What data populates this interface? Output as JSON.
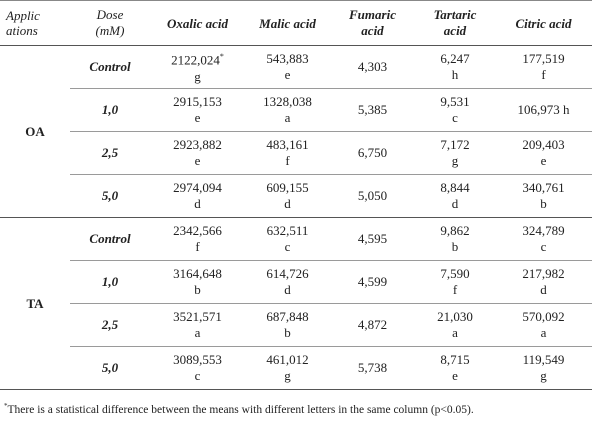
{
  "header": {
    "applications": "Applic ations",
    "dose_line1": "Dose",
    "dose_line2": "(mM)",
    "oxalic": "Oxalic acid",
    "malic": "Malic acid",
    "fumaric_line1": "Fumaric",
    "fumaric_line2": "acid",
    "tartaric_line1": "Tartaric",
    "tartaric_line2": "acid",
    "citric": "Citric acid"
  },
  "groups": [
    {
      "application": "OA",
      "rows": [
        {
          "dose": "Control",
          "oxalic": {
            "value": "2122,024",
            "sup": "*",
            "letter": "g"
          },
          "malic": {
            "value": "543,883",
            "letter": "e"
          },
          "fumaric": "4,303",
          "tartaric": {
            "value": "6,247",
            "letter": "h"
          },
          "citric": {
            "value": "177,519",
            "letter": "f"
          }
        },
        {
          "dose": "1,0",
          "oxalic": {
            "value": "2915,153",
            "letter": "e"
          },
          "malic": {
            "value": "1328,038",
            "letter": "a"
          },
          "fumaric": "5,385",
          "tartaric": {
            "value": "9,531",
            "letter": "c"
          },
          "citric": {
            "value": "106,973 h",
            "letter": ""
          }
        },
        {
          "dose": "2,5",
          "oxalic": {
            "value": "2923,882",
            "letter": "e"
          },
          "malic": {
            "value": "483,161",
            "letter": "f"
          },
          "fumaric": "6,750",
          "tartaric": {
            "value": "7,172",
            "letter": "g"
          },
          "citric": {
            "value": "209,403",
            "letter": "e"
          }
        },
        {
          "dose": "5,0",
          "oxalic": {
            "value": "2974,094",
            "letter": "d"
          },
          "malic": {
            "value": "609,155",
            "letter": "d"
          },
          "fumaric": "5,050",
          "tartaric": {
            "value": "8,844",
            "letter": "d"
          },
          "citric": {
            "value": "340,761",
            "letter": "b"
          }
        }
      ]
    },
    {
      "application": "TA",
      "rows": [
        {
          "dose": "Control",
          "oxalic": {
            "value": "2342,566",
            "letter": "f"
          },
          "malic": {
            "value": "632,511",
            "letter": "c"
          },
          "fumaric": "4,595",
          "tartaric": {
            "value": "9,862",
            "letter": "b"
          },
          "citric": {
            "value": "324,789",
            "letter": "c"
          }
        },
        {
          "dose": "1,0",
          "oxalic": {
            "value": "3164,648",
            "letter": "b"
          },
          "malic": {
            "value": "614,726",
            "letter": "d"
          },
          "fumaric": "4,599",
          "tartaric": {
            "value": "7,590",
            "letter": "f"
          },
          "citric": {
            "value": "217,982",
            "letter": "d"
          }
        },
        {
          "dose": "2,5",
          "oxalic": {
            "value": "3521,571",
            "letter": "a"
          },
          "malic": {
            "value": "687,848",
            "letter": "b"
          },
          "fumaric": "4,872",
          "tartaric": {
            "value": "21,030",
            "letter": "a"
          },
          "citric": {
            "value": "570,092",
            "letter": "a"
          }
        },
        {
          "dose": "5,0",
          "oxalic": {
            "value": "3089,553",
            "letter": "c"
          },
          "malic": {
            "value": "461,012",
            "letter": "g"
          },
          "fumaric": "5,738",
          "tartaric": {
            "value": "8,715",
            "letter": "e"
          },
          "citric": {
            "value": "119,549",
            "letter": "g"
          }
        }
      ]
    }
  ],
  "footnote": {
    "marker": "*",
    "text": "There is a statistical difference between the means with different letters in the same column (p<0.05)."
  }
}
